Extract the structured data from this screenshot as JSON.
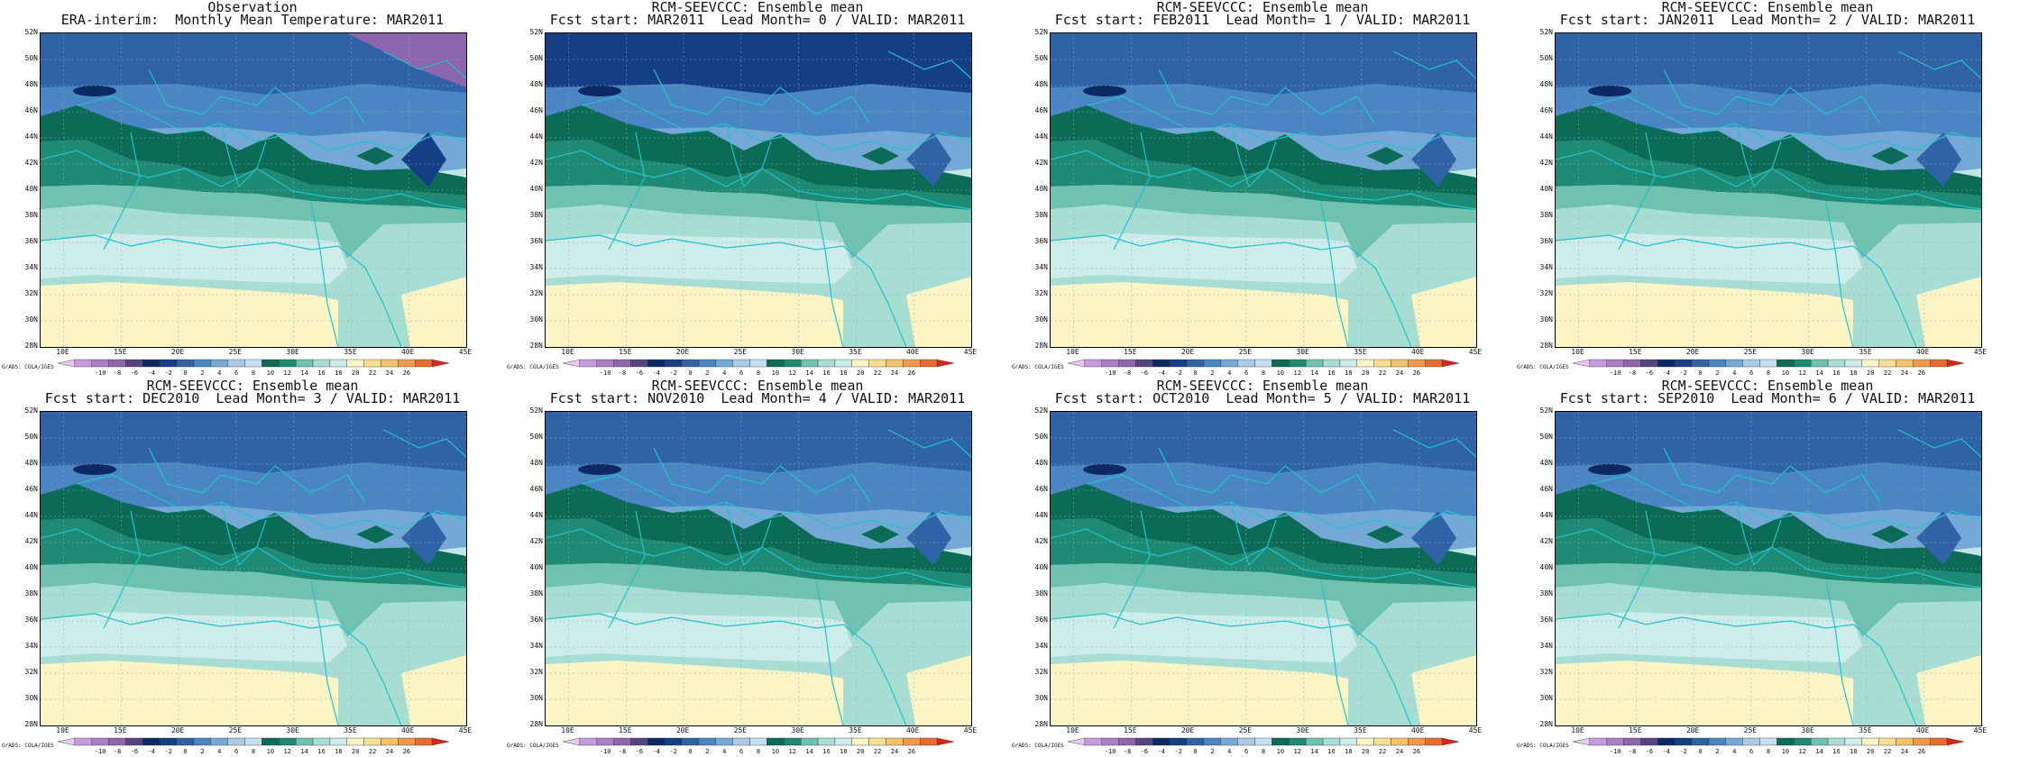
{
  "panels": [
    {
      "title1": "Observation",
      "title2": "ERA-interim:  Monthly Mean Temperature: MAR2011"
    },
    {
      "title1": "RCM-SEEVCCC: Ensemble mean",
      "title2": "Fcst start: MAR2011  Lead Month= 0 / VALID: MAR2011"
    },
    {
      "title1": "RCM-SEEVCCC: Ensemble mean",
      "title2": "Fcst start: FEB2011  Lead Month= 1 / VALID: MAR2011"
    },
    {
      "title1": "RCM-SEEVCCC: Ensemble mean",
      "title2": "Fcst start: JAN2011  Lead Month= 2 / VALID: MAR2011"
    },
    {
      "title1": "RCM-SEEVCCC: Ensemble mean",
      "title2": "Fcst start: DEC2010  Lead Month= 3 / VALID: MAR2011"
    },
    {
      "title1": "RCM-SEEVCCC: Ensemble mean",
      "title2": "Fcst start: NOV2010  Lead Month= 4 / VALID: MAR2011"
    },
    {
      "title1": "RCM-SEEVCCC: Ensemble mean",
      "title2": "Fcst start: OCT2010  Lead Month= 5 / VALID: MAR2011"
    },
    {
      "title1": "RCM-SEEVCCC: Ensemble mean",
      "title2": "Fcst start: SEP2010  Lead Month= 6 / VALID: MAR2011"
    }
  ],
  "lat_ticks": [
    "28N",
    "30N",
    "32N",
    "34N",
    "36N",
    "38N",
    "40N",
    "42N",
    "44N",
    "46N",
    "48N",
    "50N",
    "52N"
  ],
  "lon_ticks": [
    "10E",
    "15E",
    "20E",
    "25E",
    "30E",
    "35E",
    "40E",
    "45E"
  ],
  "colorbar": {
    "labels": [
      "-10",
      "-8",
      "-6",
      "-4",
      "-2",
      "0",
      "2",
      "4",
      "6",
      "8",
      "10",
      "12",
      "14",
      "16",
      "18",
      "20",
      "22",
      "24",
      "26"
    ],
    "colors": [
      "#e6c9ef",
      "#c59be0",
      "#a97ec6",
      "#8d64ae",
      "#56437f",
      "#0b2a63",
      "#143f86",
      "#2f63a6",
      "#4a86c3",
      "#74a9d6",
      "#a9cbe6",
      "#c8dcf0",
      "#0b6b57",
      "#1e8a73",
      "#6fc1b1",
      "#a7ddd2",
      "#cdecea",
      "#fbf5c6",
      "#f6df93",
      "#f3c26b",
      "#ee9a46",
      "#e86b30",
      "#d9261c"
    ]
  },
  "credit": "GrADS: COLA/IGES",
  "colors": {
    "coastline": "#22c3cc",
    "background": "#ffffff",
    "text": "#111111"
  }
}
